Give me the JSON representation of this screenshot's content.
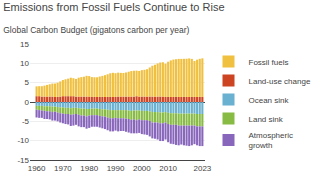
{
  "chart_data": {
    "type": "bar",
    "title": "Emissions from Fossil Fuels Continue to Rise",
    "subtitle": "Global Carbon Budget (gigatons carbon per year)",
    "stacked": true,
    "grid": true,
    "legend": "right",
    "x": [
      1960,
      1961,
      1962,
      1963,
      1964,
      1965,
      1966,
      1967,
      1968,
      1969,
      1970,
      1971,
      1972,
      1973,
      1974,
      1975,
      1976,
      1977,
      1978,
      1979,
      1980,
      1981,
      1982,
      1983,
      1984,
      1985,
      1986,
      1987,
      1988,
      1989,
      1990,
      1991,
      1992,
      1993,
      1994,
      1995,
      1996,
      1997,
      1998,
      1999,
      2000,
      2001,
      2002,
      2003,
      2004,
      2005,
      2006,
      2007,
      2008,
      2009,
      2010,
      2011,
      2012,
      2013,
      2014,
      2015,
      2016,
      2017,
      2018,
      2019,
      2020,
      2021,
      2022,
      2023
    ],
    "xlim": [
      1957.5,
      2024.0
    ],
    "xticks": [
      1960,
      1970,
      1980,
      1990,
      2000,
      2010,
      2023
    ],
    "ylim": [
      -15,
      15
    ],
    "yticks": [
      -15,
      -10,
      -5,
      0,
      5,
      10,
      15
    ],
    "series": [
      {
        "name": "Fossil fuels",
        "color": "#f0c040",
        "values": [
          2.54,
          2.59,
          2.69,
          2.84,
          3.02,
          3.19,
          3.37,
          3.48,
          3.69,
          3.92,
          4.18,
          4.37,
          4.54,
          4.78,
          4.65,
          4.57,
          4.89,
          5.03,
          5.14,
          5.37,
          5.3,
          5.14,
          5.1,
          5.09,
          5.29,
          5.45,
          5.64,
          5.87,
          6.13,
          6.25,
          6.14,
          6.19,
          6.13,
          6.11,
          6.24,
          6.43,
          6.6,
          6.68,
          6.61,
          6.63,
          6.84,
          6.93,
          7.08,
          7.53,
          7.98,
          8.24,
          8.56,
          8.81,
          8.88,
          8.61,
          9.12,
          9.46,
          9.67,
          9.77,
          9.85,
          9.85,
          9.87,
          9.89,
          9.97,
          9.85,
          9.32,
          9.64,
          9.87,
          10.0
        ]
      },
      {
        "name": "Land-use change",
        "color": "#cc4422",
        "values": [
          1.5,
          1.5,
          1.4,
          1.4,
          1.4,
          1.4,
          1.4,
          1.3,
          1.3,
          1.4,
          1.5,
          1.5,
          1.5,
          1.5,
          1.5,
          1.4,
          1.4,
          1.4,
          1.4,
          1.4,
          1.4,
          1.3,
          1.3,
          1.3,
          1.3,
          1.3,
          1.3,
          1.3,
          1.3,
          1.3,
          1.3,
          1.4,
          1.4,
          1.4,
          1.4,
          1.4,
          1.4,
          1.4,
          1.5,
          1.4,
          1.4,
          1.4,
          1.4,
          1.4,
          1.4,
          1.4,
          1.4,
          1.4,
          1.4,
          1.3,
          1.3,
          1.3,
          1.3,
          1.3,
          1.3,
          1.3,
          1.3,
          1.3,
          1.3,
          1.3,
          1.3,
          1.3,
          1.3,
          1.3
        ]
      },
      {
        "name": "Ocean sink",
        "color": "#6ab0d0",
        "values": [
          -1.0,
          -1.0,
          -1.0,
          -1.1,
          -1.1,
          -1.1,
          -1.2,
          -1.2,
          -1.3,
          -1.4,
          -1.4,
          -1.5,
          -1.5,
          -1.6,
          -1.5,
          -1.5,
          -1.6,
          -1.7,
          -1.7,
          -1.8,
          -1.8,
          -1.7,
          -1.7,
          -1.7,
          -1.8,
          -1.9,
          -1.9,
          -2.0,
          -2.1,
          -2.1,
          -2.1,
          -2.1,
          -2.1,
          -2.1,
          -2.1,
          -2.2,
          -2.3,
          -2.2,
          -2.2,
          -2.2,
          -2.3,
          -2.3,
          -2.3,
          -2.4,
          -2.6,
          -2.6,
          -2.6,
          -2.7,
          -2.7,
          -2.6,
          -2.8,
          -2.9,
          -2.9,
          -2.9,
          -3.0,
          -3.0,
          -3.0,
          -3.0,
          -3.0,
          -3.0,
          -3.0,
          -3.1,
          -3.1,
          -3.1
        ]
      },
      {
        "name": "Land sink",
        "color": "#88bb44",
        "values": [
          -1.0,
          -1.1,
          -1.2,
          -1.2,
          -1.3,
          -1.3,
          -1.4,
          -1.3,
          -1.4,
          -1.5,
          -1.6,
          -1.6,
          -1.6,
          -1.7,
          -1.7,
          -1.6,
          -1.7,
          -1.8,
          -1.8,
          -1.9,
          -1.7,
          -1.7,
          -1.7,
          -1.7,
          -1.8,
          -1.8,
          -1.9,
          -2.0,
          -2.1,
          -2.1,
          -2.0,
          -2.1,
          -2.1,
          -2.1,
          -2.2,
          -2.2,
          -2.3,
          -2.3,
          -2.5,
          -2.3,
          -2.4,
          -2.4,
          -2.4,
          -2.5,
          -2.7,
          -2.7,
          -2.7,
          -2.8,
          -2.8,
          -2.7,
          -2.9,
          -3.0,
          -3.0,
          -3.0,
          -3.1,
          -3.1,
          -3.1,
          -3.1,
          -3.1,
          -3.1,
          -3.1,
          -3.2,
          -3.2,
          -3.2
        ]
      },
      {
        "name": "Atmospheric\ngrowth",
        "color": "#8866bb",
        "values": [
          -2.0,
          -2.0,
          -1.9,
          -2.1,
          -2.0,
          -2.1,
          -2.2,
          -2.3,
          -2.3,
          -2.4,
          -2.5,
          -2.6,
          -2.7,
          -2.9,
          -2.9,
          -2.8,
          -3.0,
          -3.0,
          -3.0,
          -3.2,
          -3.2,
          -3.0,
          -3.0,
          -3.0,
          -3.0,
          -3.1,
          -3.2,
          -3.3,
          -3.4,
          -3.4,
          -3.3,
          -3.4,
          -3.3,
          -3.3,
          -3.4,
          -3.5,
          -3.5,
          -3.6,
          -3.4,
          -3.5,
          -3.6,
          -3.7,
          -3.8,
          -4.0,
          -4.1,
          -4.2,
          -4.4,
          -4.6,
          -4.6,
          -4.4,
          -4.7,
          -4.9,
          -5.0,
          -5.2,
          -5.1,
          -4.9,
          -5.1,
          -5.2,
          -5.3,
          -5.1,
          -4.8,
          -4.9,
          -5.1,
          -5.1
        ]
      }
    ]
  }
}
